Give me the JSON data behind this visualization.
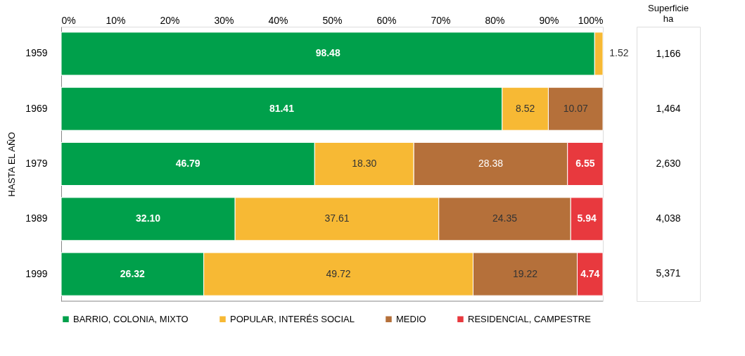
{
  "chart_data": {
    "type": "bar",
    "orientation": "horizontal",
    "stacked": true,
    "ylabel": "HASTA EL AÑO",
    "categories": [
      "1959",
      "1969",
      "1979",
      "1989",
      "1999"
    ],
    "series": [
      {
        "name": "BARRIO, COLONIA, MIXTO",
        "color": "#00a04b",
        "values": [
          98.48,
          81.41,
          46.79,
          32.1,
          26.32
        ],
        "value_labels": [
          "98.48",
          "81.41",
          "46.79",
          "32.10",
          "26.32"
        ]
      },
      {
        "name": "POPULAR, INTERÉS SOCIAL",
        "color": "#f7b934",
        "values": [
          1.52,
          8.52,
          18.3,
          37.61,
          49.72
        ],
        "value_labels": [
          "1.52",
          "8.52",
          "18.30",
          "37.61",
          "49.72"
        ]
      },
      {
        "name": "MEDIO",
        "color": "#b5703a",
        "values": [
          null,
          10.07,
          28.38,
          24.35,
          19.22
        ],
        "value_labels": [
          null,
          "10.07",
          "28.38",
          "24.35",
          "19.22"
        ]
      },
      {
        "name": "RESIDENCIAL, CAMPESTRE",
        "color": "#e8393e",
        "values": [
          null,
          null,
          6.55,
          5.94,
          4.74
        ],
        "value_labels": [
          null,
          null,
          "6.55",
          "5.94",
          "4.74"
        ]
      }
    ],
    "xlim": [
      0,
      100
    ],
    "xticks": [
      {
        "value": 0,
        "label": "0%"
      },
      {
        "value": 10,
        "label": "10%"
      },
      {
        "value": 20,
        "label": "20%"
      },
      {
        "value": 30,
        "label": "30%"
      },
      {
        "value": 40,
        "label": "40%"
      },
      {
        "value": 50,
        "label": "50%"
      },
      {
        "value": 60,
        "label": "60%"
      },
      {
        "value": 70,
        "label": "70%"
      },
      {
        "value": 80,
        "label": "80%"
      },
      {
        "value": 90,
        "label": "90%"
      },
      {
        "value": 100,
        "label": "100%"
      }
    ],
    "data_labels": true,
    "legend": "bottom",
    "grid": false,
    "annotations": [
      "Superficie ha",
      "1,166",
      "1,464",
      "2,630",
      "4,038",
      "5,371"
    ]
  }
}
